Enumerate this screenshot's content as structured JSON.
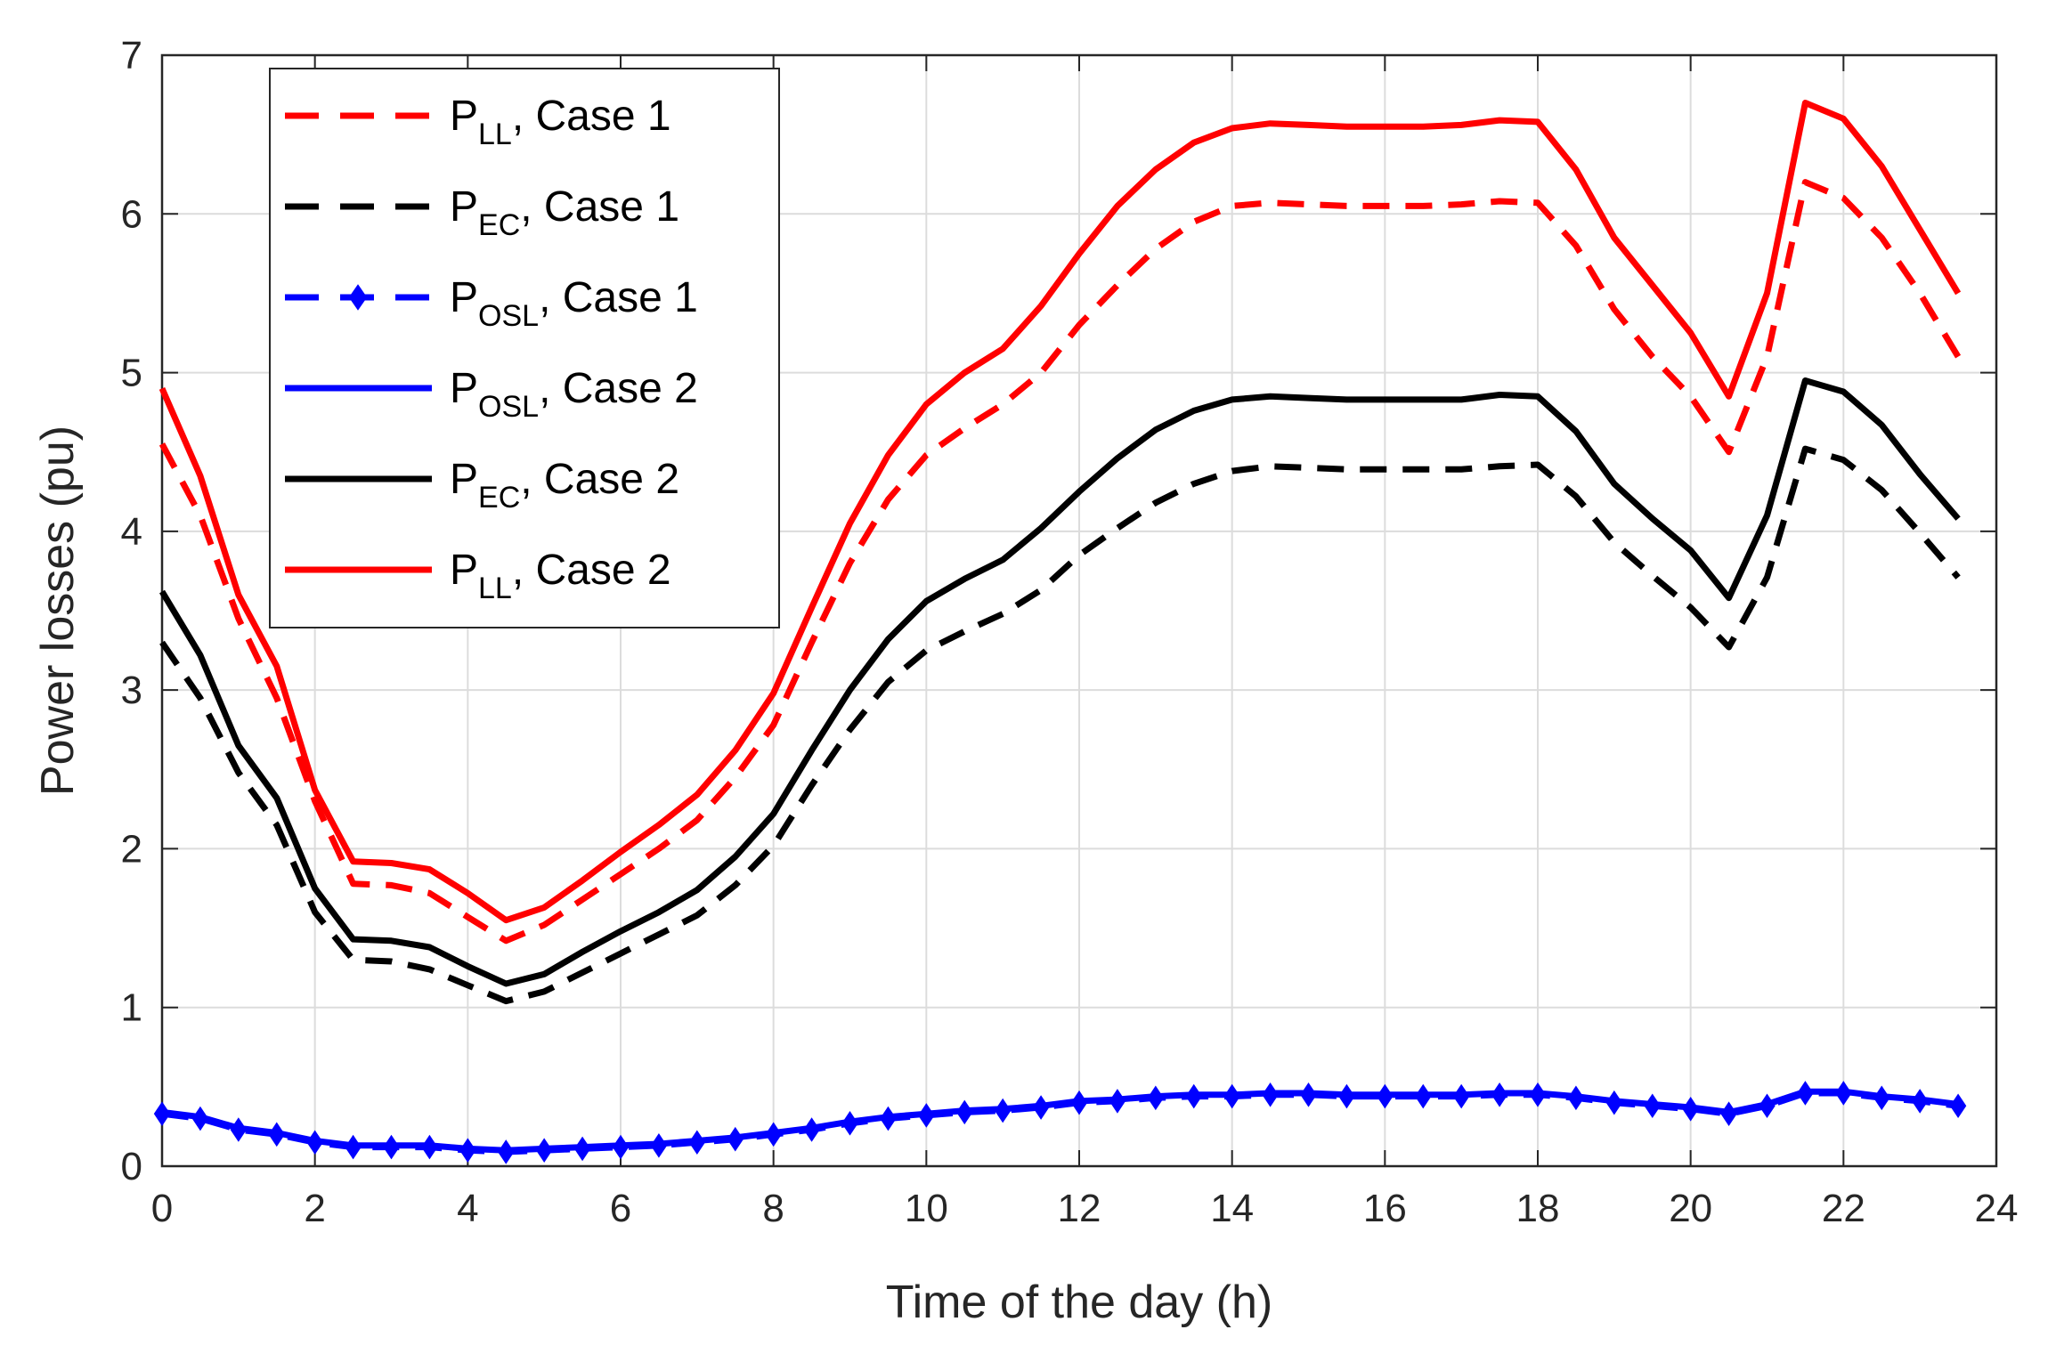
{
  "chart_data": {
    "type": "line",
    "title": "",
    "xlabel": "Time of the day (h)",
    "ylabel": "Power losses (pu)",
    "xlim": [
      0,
      24
    ],
    "ylim": [
      0,
      7
    ],
    "xticks": [
      0,
      2,
      4,
      6,
      8,
      10,
      12,
      14,
      16,
      18,
      20,
      22,
      24
    ],
    "yticks": [
      0,
      1,
      2,
      3,
      4,
      5,
      6,
      7
    ],
    "grid": true,
    "legend_position": "top-left",
    "x": [
      0,
      0.5,
      1,
      1.5,
      2,
      2.5,
      3,
      3.5,
      4,
      4.5,
      5,
      5.5,
      6,
      6.5,
      7,
      7.5,
      8,
      8.5,
      9,
      9.5,
      10,
      10.5,
      11,
      11.5,
      12,
      12.5,
      13,
      13.5,
      14,
      14.5,
      15,
      15.5,
      16,
      16.5,
      17,
      17.5,
      18,
      18.5,
      19,
      19.5,
      20,
      20.5,
      21,
      21.5,
      22,
      22.5,
      23,
      23.5
    ],
    "series": [
      {
        "name": "P_LL, Case 1",
        "legend_main": "P",
        "legend_sub": "LL",
        "legend_rest": ", Case 1",
        "color": "#ff0000",
        "style": "dashed",
        "marker": "none",
        "values": [
          4.55,
          4.1,
          3.45,
          2.95,
          2.3,
          1.78,
          1.77,
          1.72,
          1.57,
          1.42,
          1.52,
          1.68,
          1.84,
          2.0,
          2.18,
          2.45,
          2.78,
          3.3,
          3.8,
          4.2,
          4.48,
          4.65,
          4.8,
          5.0,
          5.3,
          5.55,
          5.78,
          5.95,
          6.05,
          6.07,
          6.06,
          6.05,
          6.05,
          6.05,
          6.06,
          6.08,
          6.07,
          5.8,
          5.4,
          5.1,
          4.85,
          4.5,
          5.1,
          6.2,
          6.1,
          5.85,
          5.5,
          5.1
        ]
      },
      {
        "name": "P_EC, Case 1",
        "legend_main": "P",
        "legend_sub": "EC",
        "legend_rest": ", Case 1",
        "color": "#000000",
        "style": "dashed",
        "marker": "none",
        "values": [
          3.3,
          2.95,
          2.48,
          2.15,
          1.6,
          1.3,
          1.29,
          1.24,
          1.14,
          1.04,
          1.1,
          1.22,
          1.34,
          1.46,
          1.58,
          1.77,
          2.02,
          2.4,
          2.75,
          3.05,
          3.25,
          3.37,
          3.48,
          3.63,
          3.85,
          4.02,
          4.18,
          4.3,
          4.38,
          4.41,
          4.4,
          4.39,
          4.39,
          4.39,
          4.39,
          4.41,
          4.42,
          4.22,
          3.93,
          3.72,
          3.52,
          3.27,
          3.71,
          4.52,
          4.45,
          4.26,
          3.99,
          3.71
        ]
      },
      {
        "name": "P_OSL, Case 1",
        "legend_main": "P",
        "legend_sub": "OSL",
        "legend_rest": ", Case 1",
        "color": "#0000ff",
        "style": "dashed",
        "marker": "diamond",
        "values": [
          0.33,
          0.3,
          0.23,
          0.2,
          0.15,
          0.12,
          0.12,
          0.12,
          0.1,
          0.09,
          0.1,
          0.11,
          0.12,
          0.13,
          0.15,
          0.17,
          0.2,
          0.23,
          0.27,
          0.3,
          0.32,
          0.34,
          0.35,
          0.37,
          0.4,
          0.41,
          0.43,
          0.44,
          0.44,
          0.45,
          0.45,
          0.44,
          0.44,
          0.44,
          0.44,
          0.45,
          0.45,
          0.43,
          0.4,
          0.38,
          0.36,
          0.33,
          0.38,
          0.46,
          0.46,
          0.43,
          0.41,
          0.38
        ]
      },
      {
        "name": "P_OSL, Case 2",
        "legend_main": "P",
        "legend_sub": "OSL",
        "legend_rest": ", Case 2",
        "color": "#0000ff",
        "style": "solid",
        "marker": "none",
        "values": [
          0.34,
          0.31,
          0.24,
          0.21,
          0.16,
          0.13,
          0.13,
          0.13,
          0.11,
          0.1,
          0.11,
          0.12,
          0.13,
          0.14,
          0.16,
          0.18,
          0.21,
          0.24,
          0.28,
          0.31,
          0.33,
          0.35,
          0.36,
          0.38,
          0.41,
          0.42,
          0.44,
          0.45,
          0.45,
          0.46,
          0.46,
          0.45,
          0.45,
          0.45,
          0.45,
          0.46,
          0.46,
          0.44,
          0.41,
          0.39,
          0.37,
          0.34,
          0.39,
          0.47,
          0.47,
          0.44,
          0.42,
          0.39
        ]
      },
      {
        "name": "P_EC, Case 2",
        "legend_main": "P",
        "legend_sub": "EC",
        "legend_rest": ", Case 2",
        "color": "#000000",
        "style": "solid",
        "marker": "none",
        "values": [
          3.62,
          3.22,
          2.65,
          2.32,
          1.75,
          1.43,
          1.42,
          1.38,
          1.26,
          1.15,
          1.21,
          1.35,
          1.48,
          1.6,
          1.74,
          1.95,
          2.22,
          2.62,
          3.0,
          3.32,
          3.56,
          3.7,
          3.82,
          4.02,
          4.25,
          4.46,
          4.64,
          4.76,
          4.83,
          4.85,
          4.84,
          4.83,
          4.83,
          4.83,
          4.83,
          4.86,
          4.85,
          4.63,
          4.3,
          4.08,
          3.88,
          3.58,
          4.1,
          4.95,
          4.88,
          4.67,
          4.36,
          4.08
        ]
      },
      {
        "name": "P_LL, Case 2",
        "legend_main": "P",
        "legend_sub": "LL",
        "legend_rest": ", Case 2",
        "color": "#ff0000",
        "style": "solid",
        "marker": "none",
        "values": [
          4.9,
          4.35,
          3.6,
          3.15,
          2.37,
          1.92,
          1.91,
          1.87,
          1.72,
          1.55,
          1.63,
          1.8,
          1.98,
          2.15,
          2.34,
          2.62,
          2.98,
          3.52,
          4.05,
          4.48,
          4.8,
          5.0,
          5.15,
          5.42,
          5.75,
          6.05,
          6.28,
          6.45,
          6.54,
          6.57,
          6.56,
          6.55,
          6.55,
          6.55,
          6.56,
          6.59,
          6.58,
          6.28,
          5.85,
          5.55,
          5.25,
          4.85,
          5.5,
          6.7,
          6.6,
          6.3,
          5.9,
          5.5
        ]
      }
    ]
  }
}
